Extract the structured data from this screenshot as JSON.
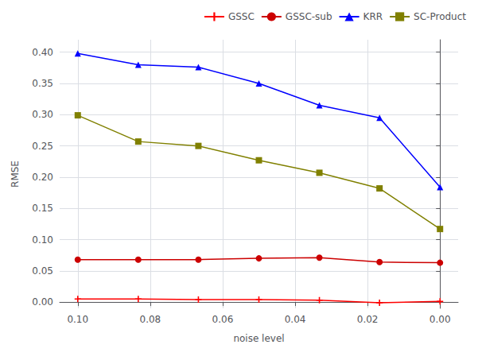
{
  "chart_data": {
    "type": "line",
    "xlabel": "noise level",
    "ylabel": "RMSE",
    "x": [
      0.1,
      0.0833,
      0.0667,
      0.05,
      0.0333,
      0.0167,
      0.0
    ],
    "series": [
      {
        "name": "GSSC",
        "color": "#ff0000",
        "marker": "plus",
        "values": [
          0.005,
          0.005,
          0.004,
          0.004,
          0.003,
          -0.001,
          0.001
        ]
      },
      {
        "name": "GSSC-sub",
        "color": "#cc0000",
        "marker": "circle",
        "values": [
          0.068,
          0.068,
          0.068,
          0.07,
          0.071,
          0.064,
          0.063
        ]
      },
      {
        "name": "KRR",
        "color": "#0000ff",
        "marker": "triangle",
        "values": [
          0.398,
          0.38,
          0.376,
          0.35,
          0.315,
          0.295,
          0.184
        ]
      },
      {
        "name": "SC-Product",
        "color": "#808000",
        "marker": "square",
        "values": [
          0.299,
          0.257,
          0.25,
          0.227,
          0.207,
          0.182,
          0.117
        ]
      }
    ],
    "xlim": [
      0.105,
      -0.005
    ],
    "xticks": [
      {
        "value": 0.1,
        "label": "0.10"
      },
      0.08,
      0.06,
      0.04,
      0.02,
      {
        "value": 0,
        "label": "0.00"
      }
    ],
    "ylim": [
      -0.01,
      0.42
    ],
    "yticks": [
      {
        "value": 0,
        "label": "0.00"
      },
      0.05,
      {
        "value": 0.1,
        "label": "0.10"
      },
      0.15,
      {
        "value": 0.2,
        "label": "0.20"
      },
      0.25,
      {
        "value": 0.3,
        "label": "0.30"
      },
      0.35,
      {
        "value": 0.4,
        "label": "0.40"
      }
    ],
    "grid": true,
    "legend": "upper right"
  }
}
